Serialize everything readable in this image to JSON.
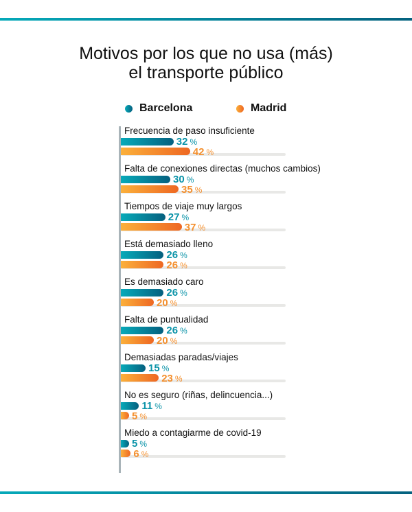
{
  "chart_data": {
    "type": "bar",
    "orientation": "horizontal",
    "title": "Motivos por los que no usa (más) el transporte público",
    "title_lines": [
      "Motivos por los que no usa (más)",
      "el transporte público"
    ],
    "unit": "%",
    "xlim": [
      0,
      100
    ],
    "legend_placement": "top",
    "categories": [
      "Frecuencia de paso insuficiente",
      "Falta de conexiones directas (muchos cambios)",
      "Tiempos de viaje muy largos",
      "Está demasiado lleno",
      "Es demasiado caro",
      "Falta de puntualidad",
      "Demasiadas paradas/viajes",
      "No es seguro (riñas, delincuencia...)",
      "Miedo a contagiarme de covid-19"
    ],
    "series": [
      {
        "name": "Barcelona",
        "color": "#0a93a8",
        "values": [
          32,
          30,
          27,
          26,
          26,
          26,
          15,
          11,
          5
        ]
      },
      {
        "name": "Madrid",
        "color": "#f4902f",
        "values": [
          42,
          35,
          37,
          26,
          20,
          20,
          23,
          5,
          6
        ]
      }
    ]
  }
}
